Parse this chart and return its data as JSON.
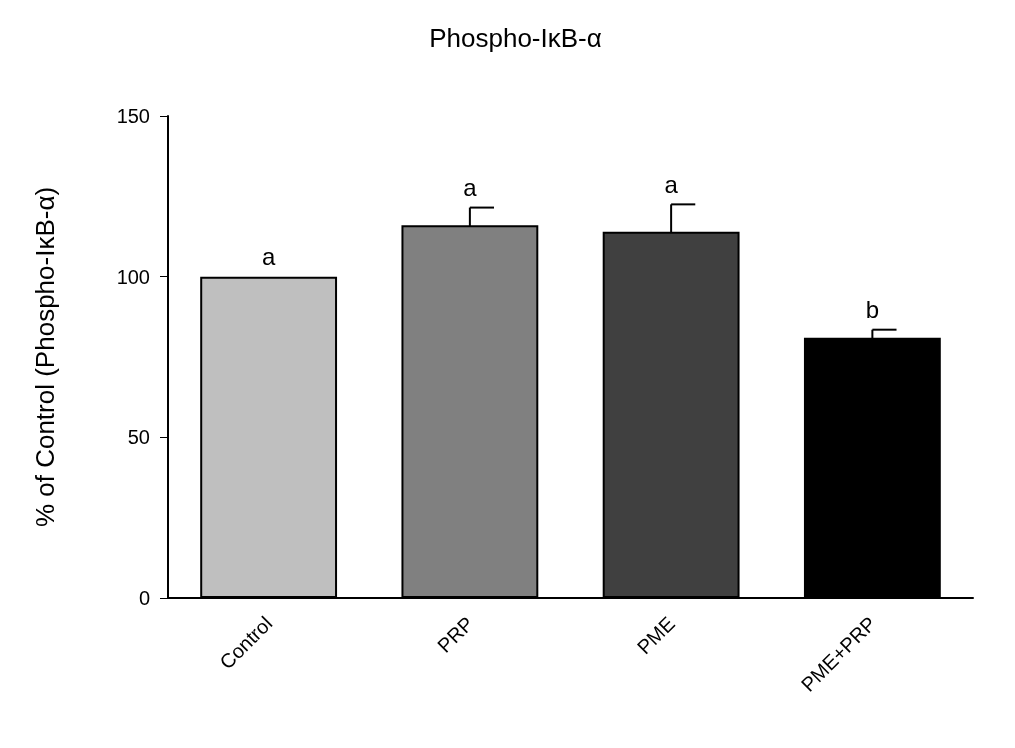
{
  "chart_data": {
    "type": "bar",
    "title": "Phospho-IκB-α",
    "ylabel": "% of Control (Phospho-IκB-α)",
    "categories": [
      "Control",
      "PRP",
      "PME",
      "PME+PRP"
    ],
    "values": [
      100,
      116,
      114,
      81
    ],
    "colors": [
      "#bfbfbf",
      "#808080",
      "#404040",
      "#000000"
    ],
    "errors": [
      null,
      5.5,
      8.5,
      2.5
    ],
    "ylim": [
      0,
      150
    ],
    "yticks": [
      0,
      50,
      100,
      150
    ],
    "grid": false,
    "annotations": [
      {
        "text": "a",
        "x": "Control",
        "y": 100
      },
      {
        "text": "a",
        "x": "PRP",
        "y": 121.5
      },
      {
        "text": "a",
        "x": "PME",
        "y": 122.5
      },
      {
        "text": "b",
        "x": "PME+PRP",
        "y": 83.5
      }
    ]
  }
}
